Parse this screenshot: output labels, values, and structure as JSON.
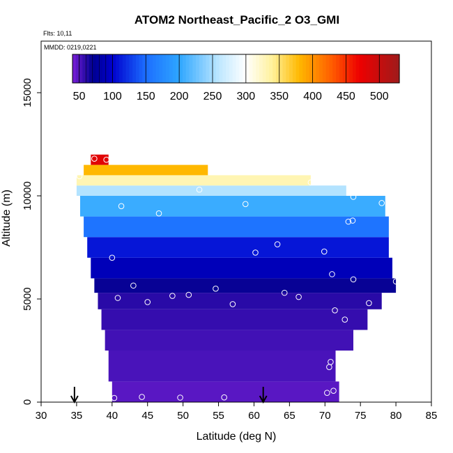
{
  "chart_data": {
    "type": "heatmap",
    "title": "ATOM2 Northeast_Pacific_2 O3_GMI",
    "flights_label": "Flts: 10,11",
    "dates_label": "MMDD: 0219,0221",
    "xlabel": "Latitude (deg N)",
    "ylabel": "Altitude (m)",
    "xlim": [
      30,
      85
    ],
    "ylim": [
      0,
      17500
    ],
    "xticks": [
      30,
      35,
      40,
      45,
      50,
      55,
      60,
      65,
      70,
      75,
      80,
      85
    ],
    "yticks": [
      0,
      5000,
      10000,
      15000
    ],
    "colorbar": {
      "min": 40,
      "max": 530,
      "ticks": [
        50,
        100,
        150,
        200,
        250,
        300,
        350,
        400,
        450,
        500
      ],
      "stops": [
        {
          "v": 40,
          "c": "#7a1fd6"
        },
        {
          "v": 70,
          "c": "#000090"
        },
        {
          "v": 100,
          "c": "#0000cd"
        },
        {
          "v": 150,
          "c": "#1c6eff"
        },
        {
          "v": 200,
          "c": "#2ea6ff"
        },
        {
          "v": 260,
          "c": "#bfe8ff"
        },
        {
          "v": 300,
          "c": "#ffffff"
        },
        {
          "v": 340,
          "c": "#fff19a"
        },
        {
          "v": 380,
          "c": "#ffb800"
        },
        {
          "v": 430,
          "c": "#ff5a00"
        },
        {
          "v": 470,
          "c": "#ee0000"
        },
        {
          "v": 530,
          "c": "#9e1b1b"
        }
      ]
    },
    "field_layers": [
      {
        "alt": [
          0,
          1000
        ],
        "lat": [
          40,
          72
        ],
        "o3": 48
      },
      {
        "alt": [
          1000,
          2500
        ],
        "lat": [
          39.5,
          71.5
        ],
        "o3": 52
      },
      {
        "alt": [
          2500,
          3500
        ],
        "lat": [
          39,
          74
        ],
        "o3": 54
      },
      {
        "alt": [
          3500,
          4500
        ],
        "lat": [
          38.5,
          76
        ],
        "o3": 57
      },
      {
        "alt": [
          4500,
          5300
        ],
        "lat": [
          38,
          78
        ],
        "o3": 60
      },
      {
        "alt": [
          5300,
          6000
        ],
        "lat": [
          37.5,
          80
        ],
        "o3": 68
      },
      {
        "alt": [
          6000,
          7000
        ],
        "lat": [
          37,
          79.5
        ],
        "o3": 90
      },
      {
        "alt": [
          7000,
          8000
        ],
        "lat": [
          36.5,
          79
        ],
        "o3": 110
      },
      {
        "alt": [
          8000,
          9000
        ],
        "lat": [
          36,
          79
        ],
        "o3": 155
      },
      {
        "alt": [
          9000,
          10000
        ],
        "lat": [
          35.5,
          78.5
        ],
        "o3": 205
      },
      {
        "alt": [
          10000,
          10500
        ],
        "lat": [
          35,
          73
        ],
        "o3": 255
      },
      {
        "alt": [
          10500,
          11000
        ],
        "lat": [
          35,
          68
        ],
        "o3": 330
      },
      {
        "alt": [
          11000,
          11500
        ],
        "lat": [
          36,
          53.5
        ],
        "o3": 380
      },
      {
        "alt": [
          11500,
          12000
        ],
        "lat": [
          37,
          39.5
        ],
        "o3": 480
      }
    ],
    "flight_path_points": [
      {
        "lat": 40.3,
        "alt": 200
      },
      {
        "lat": 44.2,
        "alt": 250
      },
      {
        "lat": 49.6,
        "alt": 220
      },
      {
        "lat": 55.8,
        "alt": 230
      },
      {
        "lat": 70.3,
        "alt": 450
      },
      {
        "lat": 71.2,
        "alt": 550
      },
      {
        "lat": 70.6,
        "alt": 1700
      },
      {
        "lat": 70.8,
        "alt": 1950
      },
      {
        "lat": 72.8,
        "alt": 4000
      },
      {
        "lat": 71.4,
        "alt": 4450
      },
      {
        "lat": 76.2,
        "alt": 4800
      },
      {
        "lat": 40.8,
        "alt": 5050
      },
      {
        "lat": 45.0,
        "alt": 4850
      },
      {
        "lat": 48.5,
        "alt": 5150
      },
      {
        "lat": 50.8,
        "alt": 5200
      },
      {
        "lat": 57.0,
        "alt": 4750
      },
      {
        "lat": 64.3,
        "alt": 5300
      },
      {
        "lat": 66.3,
        "alt": 5100
      },
      {
        "lat": 43.0,
        "alt": 5650
      },
      {
        "lat": 54.6,
        "alt": 5500
      },
      {
        "lat": 74.0,
        "alt": 5950
      },
      {
        "lat": 80.0,
        "alt": 5850
      },
      {
        "lat": 71.0,
        "alt": 6200
      },
      {
        "lat": 40.0,
        "alt": 7000
      },
      {
        "lat": 60.2,
        "alt": 7250
      },
      {
        "lat": 69.9,
        "alt": 7300
      },
      {
        "lat": 63.3,
        "alt": 7650
      },
      {
        "lat": 73.3,
        "alt": 8750
      },
      {
        "lat": 73.9,
        "alt": 8800
      },
      {
        "lat": 46.6,
        "alt": 9150
      },
      {
        "lat": 41.3,
        "alt": 9500
      },
      {
        "lat": 58.8,
        "alt": 9600
      },
      {
        "lat": 74.0,
        "alt": 9950
      },
      {
        "lat": 78.0,
        "alt": 9650
      },
      {
        "lat": 52.3,
        "alt": 10300
      },
      {
        "lat": 68.0,
        "alt": 10650
      },
      {
        "lat": 35.4,
        "alt": 10950
      },
      {
        "lat": 37.5,
        "alt": 11800
      },
      {
        "lat": 39.2,
        "alt": 11750
      }
    ],
    "region_markers_lat": [
      34.7,
      61.3
    ]
  }
}
